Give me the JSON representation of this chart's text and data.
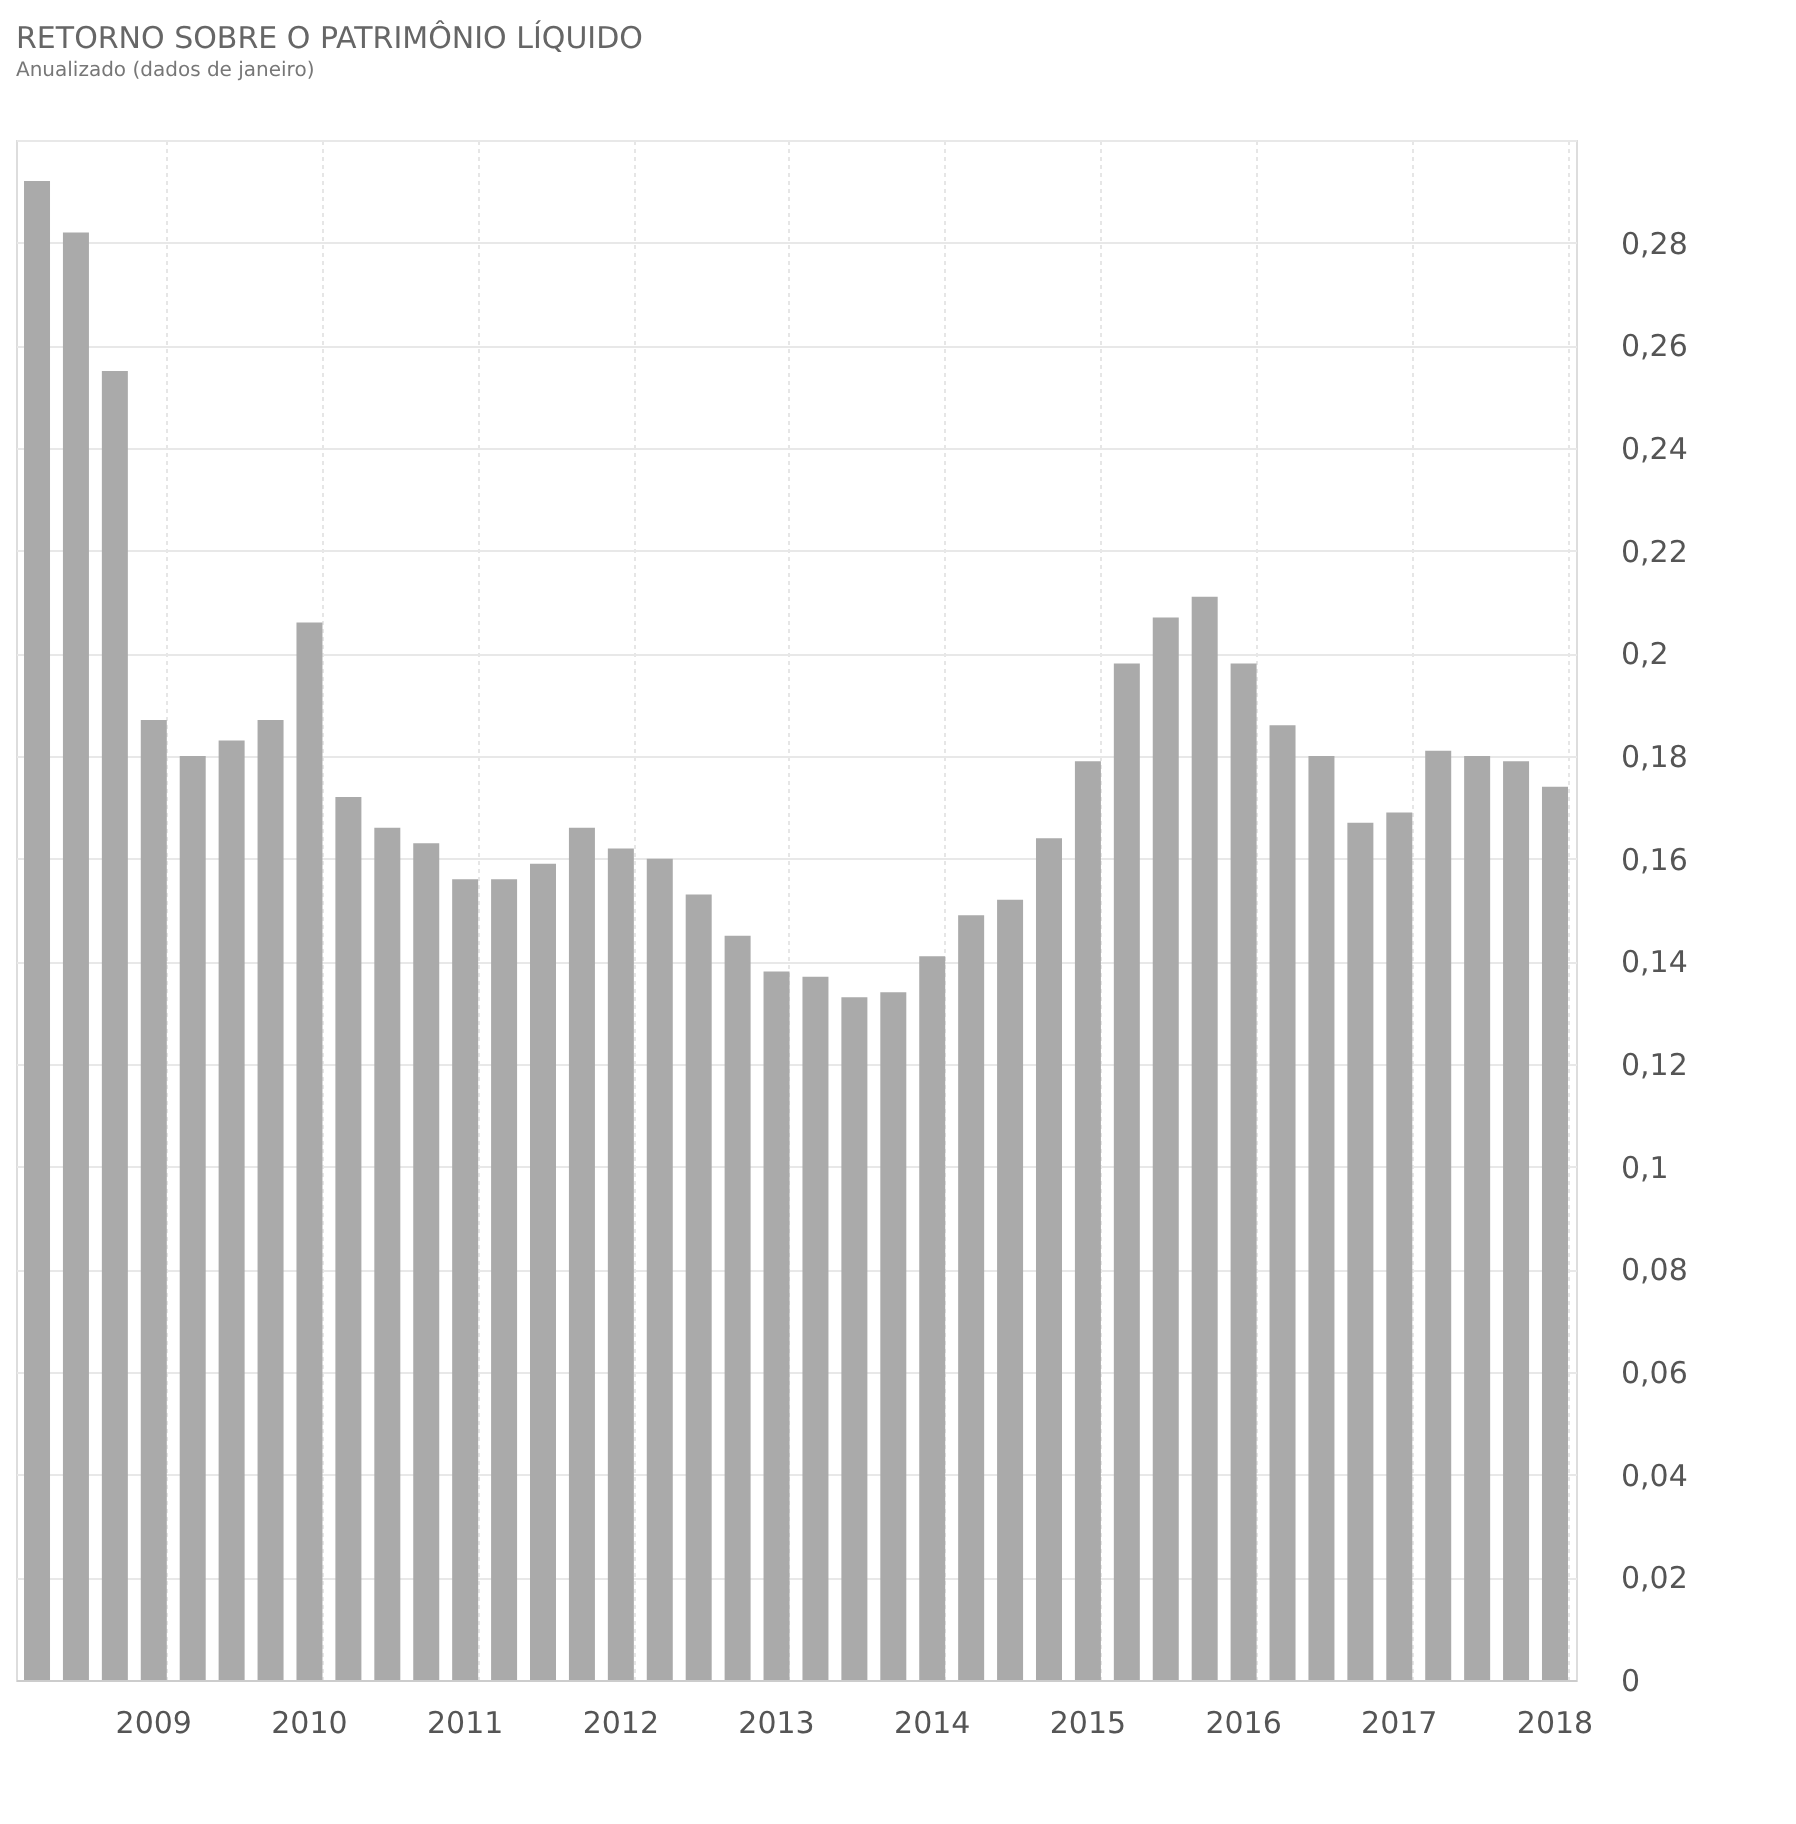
{
  "chart_data": {
    "type": "bar",
    "title": "RETORNO SOBRE O PATRIMÔNIO LÍQUIDO",
    "subtitle": "Anualizado (dados de janeiro)",
    "categories": [
      null,
      null,
      null,
      "2009",
      null,
      null,
      null,
      "2010",
      null,
      null,
      null,
      "2011",
      null,
      null,
      null,
      "2012",
      null,
      null,
      null,
      "2013",
      null,
      null,
      null,
      "2014",
      null,
      null,
      null,
      "2015",
      null,
      null,
      null,
      "2016",
      null,
      null,
      null,
      "2017",
      null,
      null,
      null,
      "2018"
    ],
    "values": [
      0.292,
      0.282,
      0.255,
      0.187,
      0.18,
      0.183,
      0.187,
      0.206,
      0.172,
      0.166,
      0.163,
      0.156,
      0.156,
      0.159,
      0.166,
      0.162,
      0.16,
      0.153,
      0.145,
      0.138,
      0.137,
      0.133,
      0.134,
      0.141,
      0.149,
      0.152,
      0.164,
      0.179,
      0.198,
      0.207,
      0.211,
      0.198,
      0.186,
      0.18,
      0.167,
      0.169,
      0.181,
      0.18,
      0.179,
      0.174
    ],
    "color": "#aaaaaa",
    "ylim": [
      0,
      0.3
    ],
    "yticks": [
      0,
      {
        "value": 0.02,
        "label": "0,02"
      },
      {
        "value": 0.04,
        "label": "0,04"
      },
      {
        "value": 0.06,
        "label": "0,06"
      },
      {
        "value": 0.08,
        "label": "0,08"
      },
      {
        "value": 0.1,
        "label": "0,1"
      },
      {
        "value": 0.12,
        "label": "0,12"
      },
      {
        "value": 0.14,
        "label": "0,14"
      },
      {
        "value": 0.16,
        "label": "0,16"
      },
      {
        "value": 0.18,
        "label": "0,18"
      },
      {
        "value": 0.2,
        "label": "0,2"
      },
      {
        "value": 0.22,
        "label": "0,22"
      },
      {
        "value": 0.24,
        "label": "0,24"
      },
      {
        "value": 0.26,
        "label": "0,26"
      },
      {
        "value": 0.28,
        "label": "0,28"
      },
      {
        "value": 0.3,
        "label": null
      }
    ],
    "grid": true
  }
}
